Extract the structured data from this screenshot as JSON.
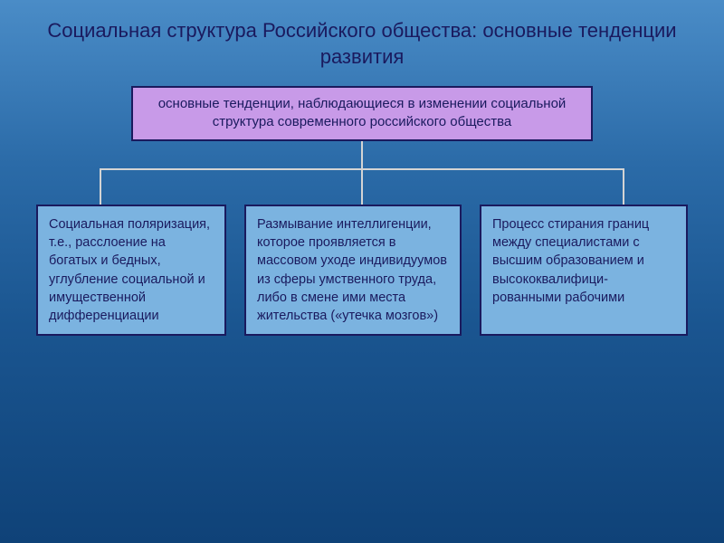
{
  "slide": {
    "title": "Социальная структура Российского общества: основные тенденции развития",
    "header_box": "основные тенденции, наблюдающиеся в изменении социальной структура современного российского общества",
    "boxes": [
      {
        "text": "Социальная поляризация, т.е., расслоение на богатых и бедных, углубление социальной и имущественной дифференциации"
      },
      {
        "text": "Размывание интеллигенции, которое проявляется в массовом уходе индивидуумов из сферы умственного труда, либо в смене ими места жительства («утечка мозгов»)"
      },
      {
        "text": "Процесс стирания границ между специалистами с высшим образованием и высококвалифици-рованными рабочими"
      }
    ]
  },
  "style": {
    "background_gradient": [
      "#4a8cc7",
      "#2b6ba8",
      "#1a5590",
      "#0f4278"
    ],
    "title_color": "#1a1a5e",
    "title_fontsize": 22,
    "header_bg": "#c89ae8",
    "header_border": "#1a1a5e",
    "header_fontsize": 15,
    "box_bg": "#7bb3e0",
    "box_border": "#1a1a5e",
    "box_fontsize": 14.5,
    "connector_color": "#d4d4d4",
    "type": "tree"
  }
}
